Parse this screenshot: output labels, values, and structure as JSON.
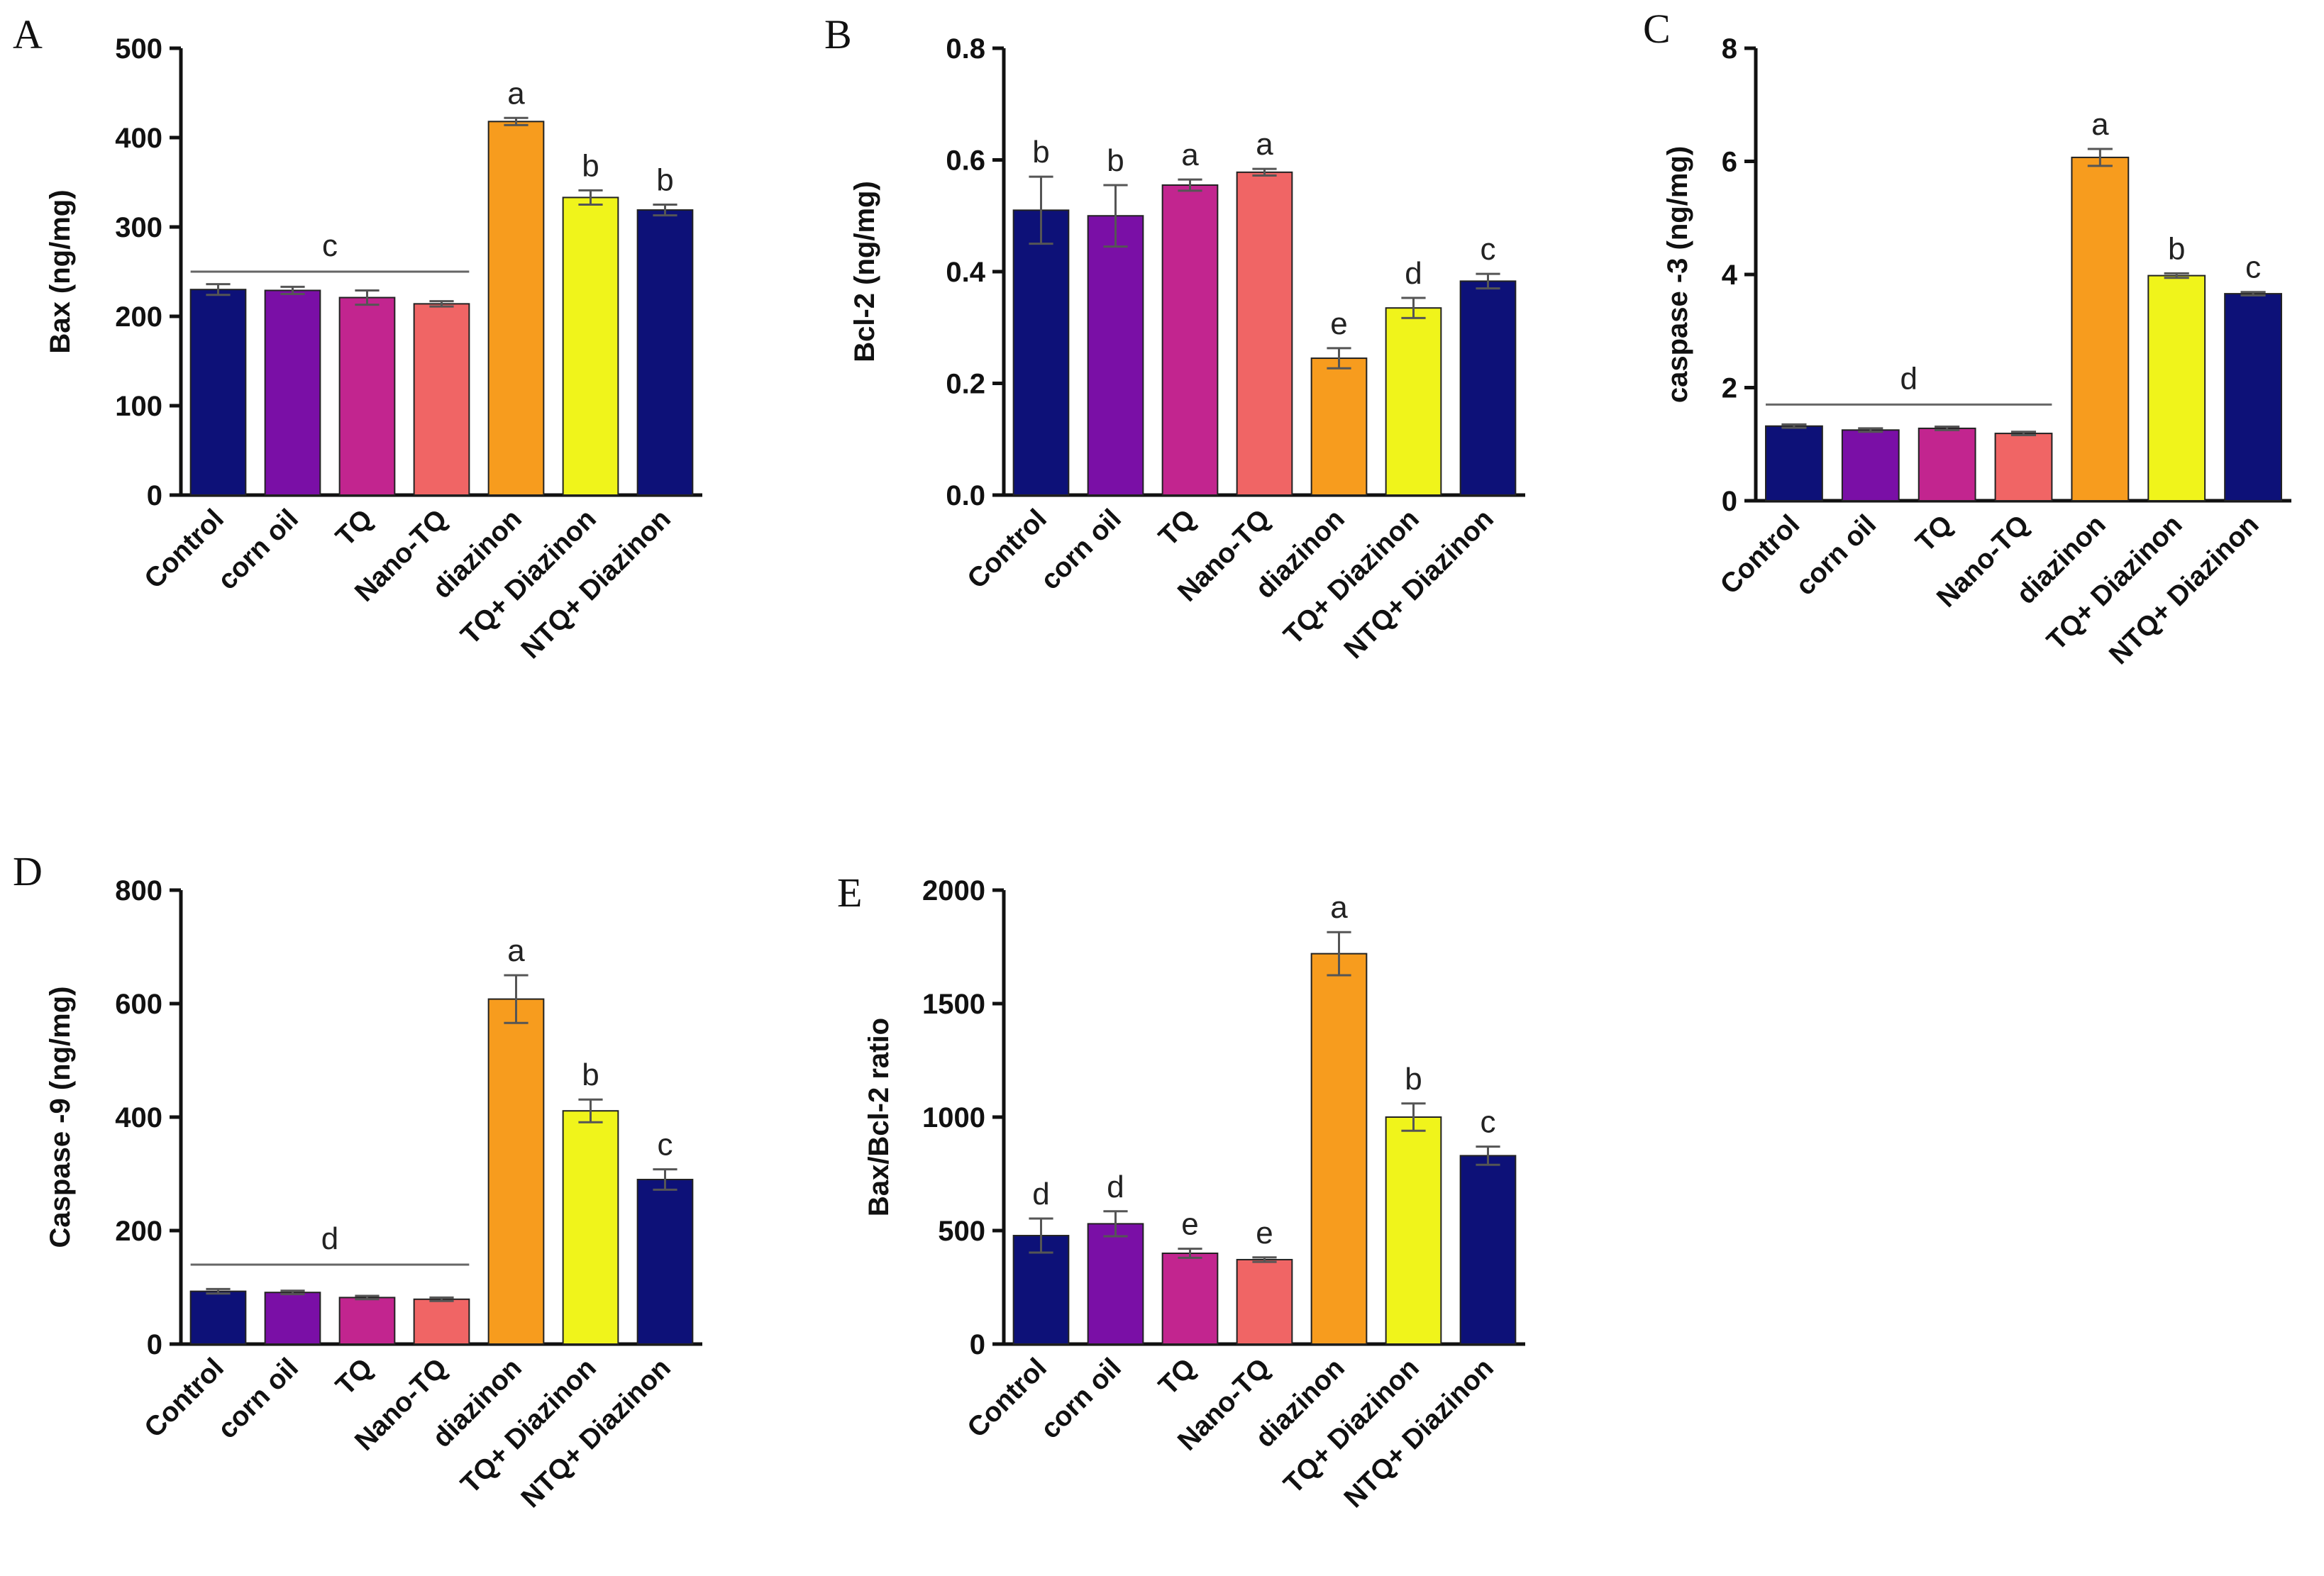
{
  "figure": {
    "categories": [
      "Control",
      "corn oil",
      "TQ",
      "Nano-TQ",
      "diazinon",
      "TQ+ Diazinon",
      "NTQ+ Diazinon"
    ],
    "bar_colors": [
      "#0d1178",
      "#7a0fa6",
      "#c2258f",
      "#f06565",
      "#f79c1e",
      "#f0f41b",
      "#0d1178"
    ]
  },
  "chart_data": [
    {
      "panel": "A",
      "type": "bar",
      "ylabel": "Bax (ng/mg)",
      "ylim": [
        0,
        500
      ],
      "yticks": [
        0,
        100,
        200,
        300,
        400,
        500
      ],
      "values": [
        230,
        229,
        221,
        214,
        418,
        333,
        319
      ],
      "errors": [
        6,
        4,
        8,
        3,
        4,
        8,
        6
      ],
      "sig_letters": [
        "",
        "",
        "",
        "",
        "a",
        "b",
        "b"
      ],
      "group_label": {
        "text": "c",
        "from": 0,
        "to": 3,
        "y": 250
      }
    },
    {
      "panel": "B",
      "type": "bar",
      "ylabel": "Bcl-2 (ng/mg)",
      "ylim": [
        0,
        0.8
      ],
      "yticks": [
        "0.0",
        "0.2",
        "0.4",
        "0.6",
        "0.8"
      ],
      "values": [
        0.51,
        0.5,
        0.555,
        0.578,
        0.245,
        0.335,
        0.383
      ],
      "errors": [
        0.06,
        0.055,
        0.01,
        0.006,
        0.018,
        0.018,
        0.013
      ],
      "sig_letters": [
        "b",
        "b",
        "a",
        "a",
        "e",
        "d",
        "c"
      ]
    },
    {
      "panel": "C",
      "type": "bar",
      "ylabel": "caspase -3 (ng/mg)",
      "ylim": [
        0,
        8
      ],
      "yticks": [
        0,
        2,
        4,
        6,
        8
      ],
      "values": [
        1.32,
        1.25,
        1.28,
        1.19,
        6.07,
        3.98,
        3.66
      ],
      "errors": [
        0.03,
        0.03,
        0.03,
        0.03,
        0.15,
        0.04,
        0.03
      ],
      "sig_letters": [
        "",
        "",
        "",
        "",
        "a",
        "b",
        "c"
      ],
      "group_label": {
        "text": "d",
        "from": 0,
        "to": 3,
        "y": 1.7
      }
    },
    {
      "panel": "D",
      "type": "bar",
      "ylabel": "Caspase -9 (ng/mg)",
      "ylim": [
        0,
        800
      ],
      "yticks": [
        0,
        200,
        400,
        600,
        800
      ],
      "values": [
        93,
        91,
        82,
        79,
        608,
        411,
        290
      ],
      "errors": [
        4,
        3,
        3,
        3,
        42,
        20,
        18
      ],
      "sig_letters": [
        "",
        "",
        "",
        "",
        "a",
        "b",
        "c"
      ],
      "group_label": {
        "text": "d",
        "from": 0,
        "to": 3,
        "y": 140
      }
    },
    {
      "panel": "E",
      "type": "bar",
      "ylabel": "Bax/Bcl-2 ratio",
      "ylim": [
        0,
        2000
      ],
      "yticks": [
        0,
        500,
        1000,
        1500,
        2000
      ],
      "values": [
        478,
        530,
        400,
        372,
        1720,
        1000,
        830
      ],
      "errors": [
        75,
        55,
        20,
        10,
        95,
        60,
        40
      ],
      "sig_letters": [
        "d",
        "d",
        "e",
        "e",
        "a",
        "b",
        "c"
      ]
    }
  ]
}
